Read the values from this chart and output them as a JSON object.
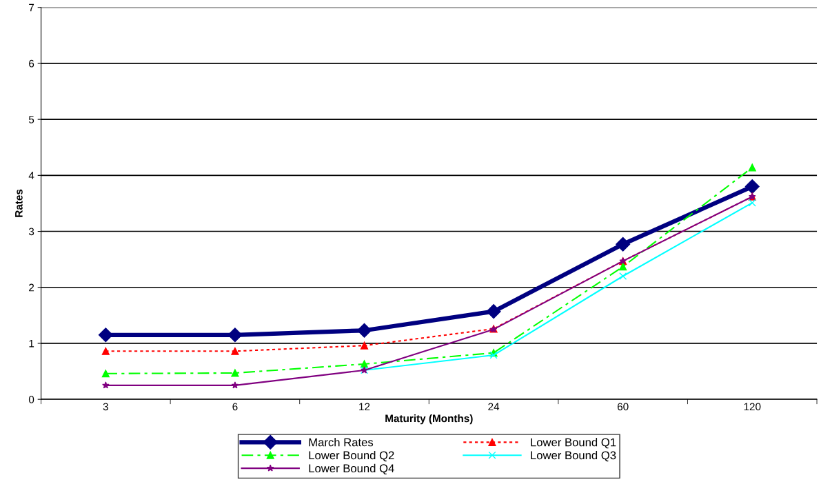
{
  "chart_data": {
    "type": "line",
    "xlabel": "Maturity (Months)",
    "ylabel": "Rates",
    "categories": [
      "3",
      "6",
      "12",
      "24",
      "60",
      "120"
    ],
    "ylim": [
      0,
      7
    ],
    "yticks": [
      0,
      1,
      2,
      3,
      4,
      5,
      6,
      7
    ],
    "grid": "y",
    "legend": "bottom",
    "series": [
      {
        "name": "March Rates",
        "color": "#000080",
        "marker": "diamond",
        "line_style": "solid",
        "values": [
          1.15,
          1.15,
          1.23,
          1.57,
          2.77,
          3.8
        ]
      },
      {
        "name": "Lower Bound Q1",
        "color": "#ff0000",
        "marker": "triangle",
        "line_style": "dotted",
        "values": [
          0.86,
          0.86,
          0.96,
          1.26,
          2.47,
          3.62
        ]
      },
      {
        "name": "Lower Bound Q2",
        "color": "#00ff00",
        "marker": "triangle",
        "line_style": "dashed",
        "values": [
          0.46,
          0.47,
          0.63,
          0.83,
          2.37,
          4.14
        ]
      },
      {
        "name": "Lower Bound Q3",
        "color": "#00ffff",
        "marker": "cross",
        "line_style": "solid",
        "values": [
          null,
          null,
          0.52,
          0.79,
          2.2,
          3.51
        ]
      },
      {
        "name": "Lower Bound Q4",
        "color": "#800080",
        "marker": "star",
        "line_style": "solid",
        "values": [
          0.25,
          0.25,
          0.52,
          1.25,
          2.47,
          3.62
        ]
      }
    ]
  }
}
